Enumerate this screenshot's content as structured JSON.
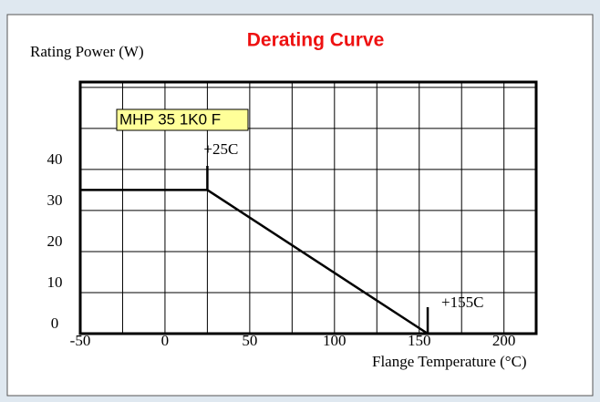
{
  "chart_data": {
    "type": "line",
    "title": "Derating Curve",
    "ylabel": "Rating Power (W)",
    "xlabel": "Flange Temperature (°C)",
    "legend_label": "MHP 35 1K0 F",
    "x": [
      -50,
      25,
      155
    ],
    "series": [
      {
        "name": "MHP 35 1K0 F",
        "color": "#000000",
        "values": [
          35,
          35,
          0
        ]
      }
    ],
    "xlim": [
      -50,
      219
    ],
    "xticks": [
      -50,
      0,
      50,
      100,
      150,
      200
    ],
    "ylim": [
      0,
      61.3
    ],
    "yticks": [
      0,
      10,
      20,
      30,
      40
    ],
    "annotations": [
      {
        "text": "+25C",
        "x": 25
      },
      {
        "text": "+155C",
        "x": 155
      }
    ],
    "grid": true
  }
}
